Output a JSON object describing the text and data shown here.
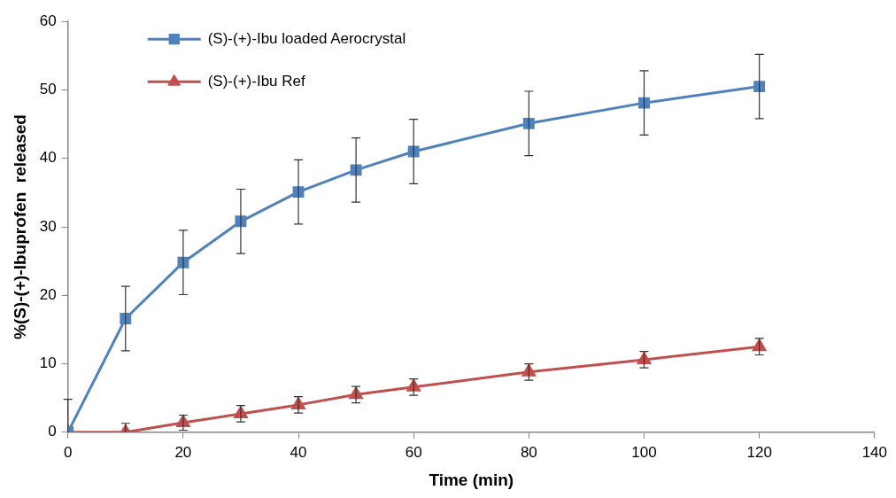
{
  "chart_data": {
    "type": "line",
    "xlabel": "Time (min)",
    "ylabel": "%(S)-(+)-Ibuprofen  released",
    "x": [
      0,
      10,
      20,
      30,
      40,
      50,
      60,
      80,
      100,
      120
    ],
    "xlim": [
      0,
      140
    ],
    "xticks": [
      0,
      20,
      40,
      60,
      80,
      100,
      120,
      140
    ],
    "ylim": [
      0,
      60
    ],
    "yticks": [
      0,
      10,
      20,
      30,
      40,
      50,
      60
    ],
    "grid": false,
    "legend": "top left",
    "line_style": "solid",
    "series": [
      {
        "name": "(S)-(+)-Ibu loaded Aerocrystal",
        "color": "#4f81bd",
        "marker": "square",
        "values": [
          0,
          16.6,
          24.8,
          30.8,
          35.1,
          38.3,
          41.0,
          45.1,
          48.1,
          50.5
        ],
        "errors": [
          4.8,
          4.7,
          4.7,
          4.7,
          4.7,
          4.7,
          4.7,
          4.7,
          4.7,
          4.7
        ]
      },
      {
        "name": "(S)-(+)-Ibu Ref",
        "color": "#c0504d",
        "marker": "triangle",
        "values": [
          0,
          0,
          1.4,
          2.7,
          4.0,
          5.5,
          6.6,
          8.8,
          10.6,
          12.5
        ],
        "errors": [
          null,
          1.3,
          1.1,
          1.2,
          1.2,
          1.2,
          1.2,
          1.2,
          1.2,
          1.2
        ]
      }
    ]
  }
}
